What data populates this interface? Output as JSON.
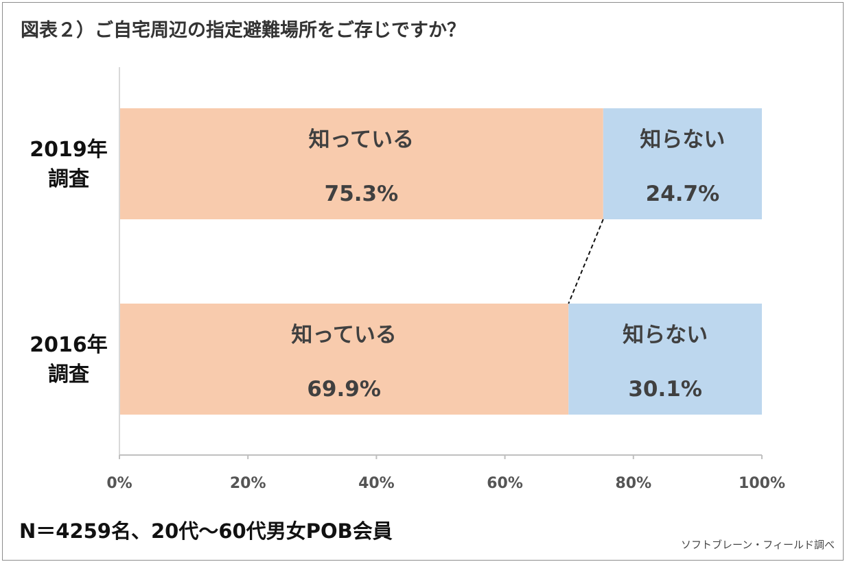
{
  "title": "図表２）ご自宅周辺の指定避難場所をご存じですか？",
  "footnote": "N＝4259名、20代～60代男女POB会員",
  "credit": "ソフトブレーン・フィールド調べ",
  "chart_data": {
    "type": "bar",
    "orientation": "horizontal",
    "stacked": true,
    "categories": [
      "2019年調査",
      "2016年調査"
    ],
    "category_lines": [
      [
        "2019年",
        "調査"
      ],
      [
        "2016年",
        "調査"
      ]
    ],
    "series": [
      {
        "name": "知っている",
        "values": [
          75.3,
          69.9
        ],
        "labels": [
          "75.3%",
          "69.9%"
        ],
        "color": "#f8cbad"
      },
      {
        "name": "知らない",
        "values": [
          24.7,
          30.1
        ],
        "labels": [
          "24.7%",
          "30.1%"
        ],
        "color": "#bdd7ee"
      }
    ],
    "xlim": [
      0,
      100
    ],
    "xticks": [
      "0%",
      "20%",
      "40%",
      "60%",
      "80%",
      "100%"
    ],
    "legend": "none",
    "grid": false,
    "series_lines": "dashed"
  }
}
